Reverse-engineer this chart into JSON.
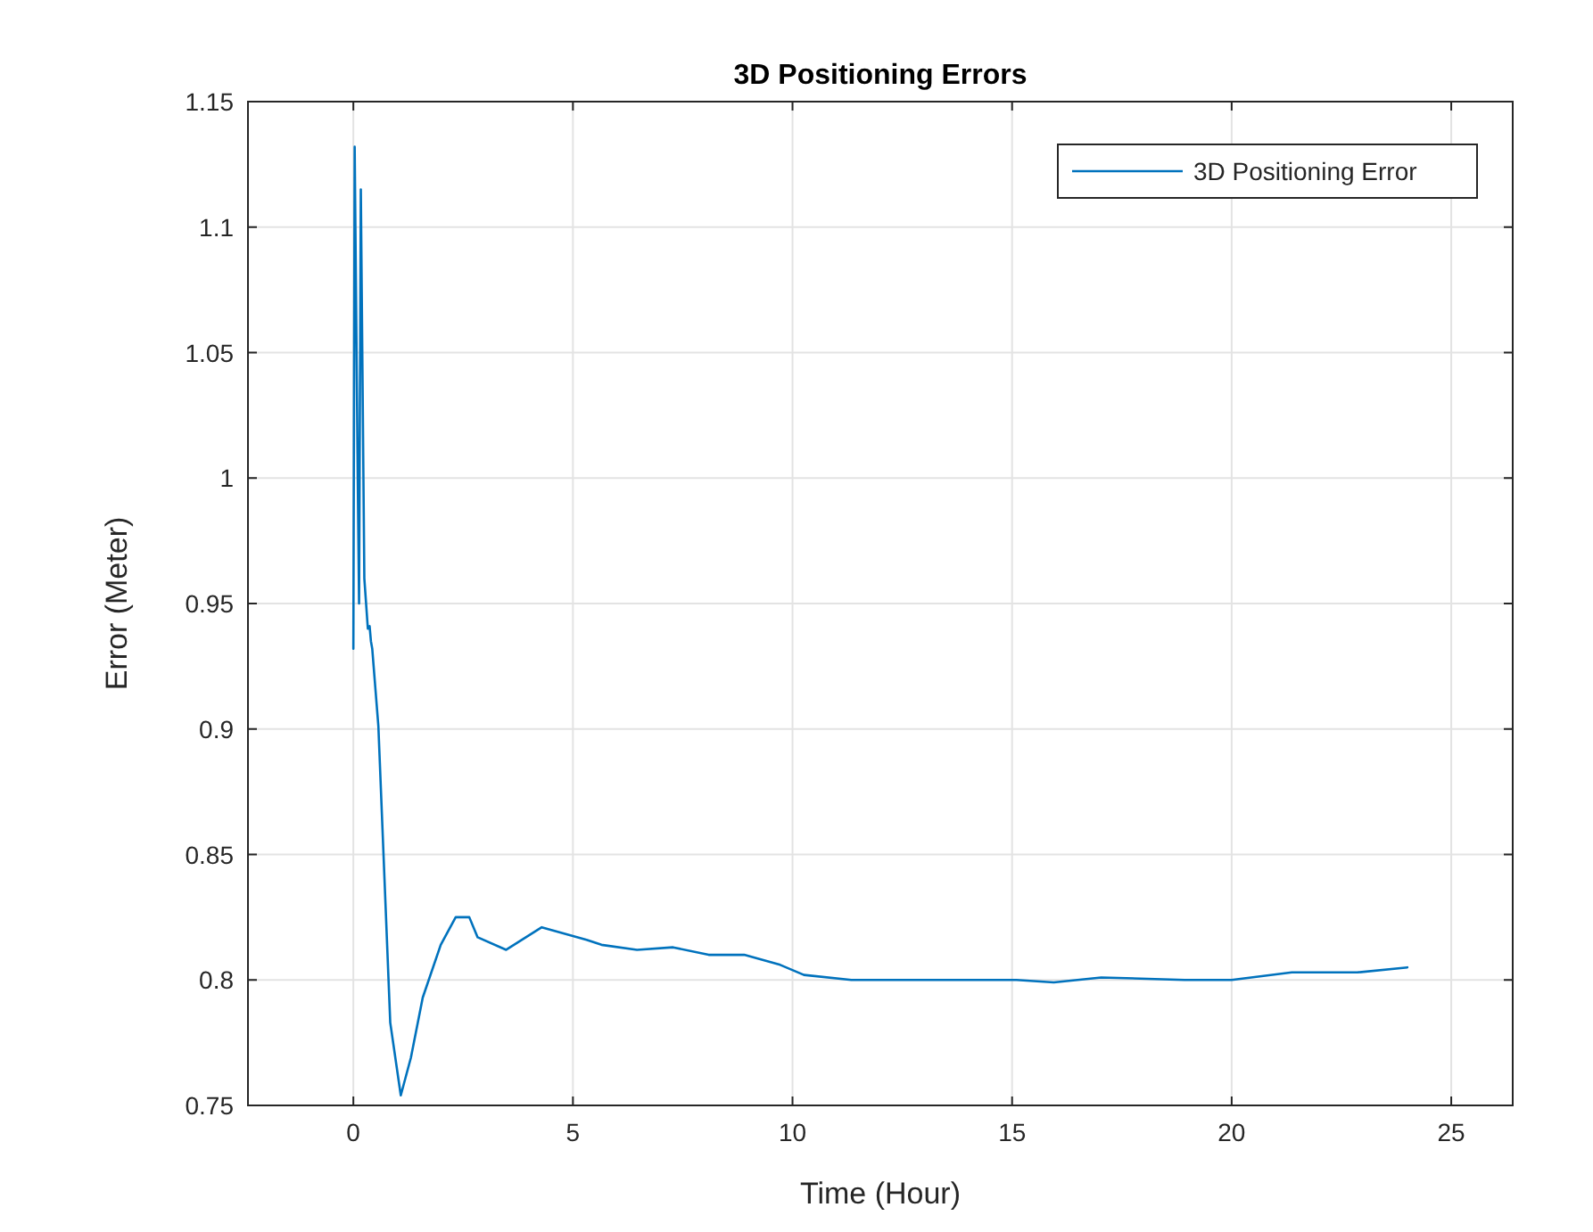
{
  "chart_data": {
    "type": "line",
    "title": "3D Positioning Errors",
    "xlabel": "Time (Hour)",
    "ylabel": "Error (Meter)",
    "xlim": [
      -2.4,
      26.4
    ],
    "xticks": [
      0,
      5,
      10,
      15,
      20,
      25
    ],
    "ylim": [
      0.75,
      1.15
    ],
    "yticks": [
      0.75,
      0.8,
      0.85,
      0.9,
      0.95,
      1,
      1.05,
      1.1,
      1.15
    ],
    "grid": true,
    "legend": "top right",
    "marker": "none",
    "line_style": "solid",
    "series": [
      {
        "name": "3D Positioning Error",
        "color": "#0072bd",
        "x": [
          0,
          0.03,
          0.1,
          0.13,
          0.17,
          0.25,
          0.33,
          0.37,
          0.4,
          0.43,
          0.57,
          0.84,
          1.08,
          1.31,
          1.58,
          1.99,
          2.33,
          2.64,
          2.83,
          3.48,
          4.29,
          5.31,
          5.65,
          6.46,
          7.28,
          8.09,
          8.9,
          9.72,
          10.26,
          11.34,
          11.9,
          13.5,
          15.1,
          15.95,
          17.03,
          18.93,
          20,
          21.37,
          22.86,
          24
        ],
        "values": [
          0.932,
          1.132,
          1.0,
          0.95,
          1.115,
          0.96,
          0.94,
          0.941,
          0.935,
          0.932,
          0.901,
          0.783,
          0.754,
          0.769,
          0.793,
          0.814,
          0.825,
          0.825,
          0.817,
          0.812,
          0.821,
          0.816,
          0.814,
          0.812,
          0.813,
          0.81,
          0.81,
          0.806,
          0.802,
          0.8,
          0.8,
          0.8,
          0.8,
          0.799,
          0.801,
          0.8,
          0.8,
          0.803,
          0.803,
          0.805
        ]
      }
    ]
  }
}
